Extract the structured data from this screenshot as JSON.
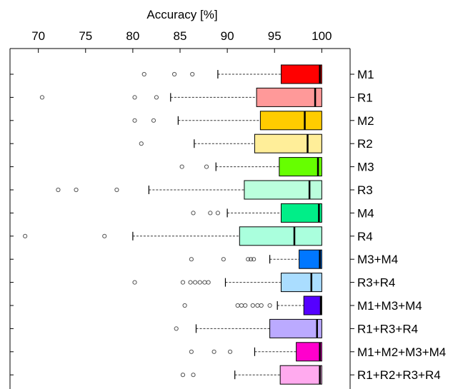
{
  "chart_data": {
    "type": "boxplot",
    "orientation": "horizontal",
    "title": "",
    "xlabel": "Accuracy [%]",
    "xlabel_position": "top",
    "xlim": [
      67,
      103
    ],
    "xticks": [
      70,
      75,
      80,
      85,
      90,
      95,
      100
    ],
    "grid": false,
    "legend": "none",
    "series": [
      {
        "name": "M1",
        "color": "#ff0000",
        "whisker_low": 89.0,
        "q1": 95.7,
        "median": 99.8,
        "q3": 100,
        "whisker_high": 100,
        "outliers": [
          81.2,
          84.4,
          86.3
        ]
      },
      {
        "name": "R1",
        "color": "#ff9999",
        "whisker_low": 84.0,
        "q1": 93.1,
        "median": 99.3,
        "q3": 100,
        "whisker_high": 100,
        "outliers": [
          70.4,
          80.2,
          82.5
        ]
      },
      {
        "name": "M2",
        "color": "#ffcc00",
        "whisker_low": 84.8,
        "q1": 93.5,
        "median": 98.2,
        "q3": 100,
        "whisker_high": 100,
        "outliers": [
          80.2,
          82.2
        ]
      },
      {
        "name": "R2",
        "color": "#ffee99",
        "whisker_low": 86.5,
        "q1": 92.9,
        "median": 98.5,
        "q3": 100,
        "whisker_high": 100,
        "outliers": [
          80.9
        ]
      },
      {
        "name": "M3",
        "color": "#66ff00",
        "whisker_low": 88.8,
        "q1": 95.5,
        "median": 99.6,
        "q3": 100,
        "whisker_high": 100,
        "outliers": [
          85.2,
          87.8
        ]
      },
      {
        "name": "R3",
        "color": "#bbffdd",
        "whisker_low": 81.7,
        "q1": 91.8,
        "median": 98.7,
        "q3": 100,
        "whisker_high": 100,
        "outliers": [
          72.1,
          74.0,
          78.3
        ]
      },
      {
        "name": "M4",
        "color": "#00ee88",
        "whisker_low": 90.0,
        "q1": 95.7,
        "median": 99.7,
        "q3": 100,
        "whisker_high": 100,
        "outliers": [
          86.4,
          88.2,
          89.0
        ]
      },
      {
        "name": "R4",
        "color": "#aaffdd",
        "whisker_low": 80.0,
        "q1": 91.3,
        "median": 97.1,
        "q3": 100,
        "whisker_high": 100,
        "outliers": [
          68.6,
          77.0
        ]
      },
      {
        "name": "M3+M4",
        "color": "#0077ff",
        "whisker_low": 94.5,
        "q1": 97.6,
        "median": 99.8,
        "q3": 100,
        "whisker_high": 100,
        "outliers": [
          86.2,
          89.6,
          92.2,
          92.5,
          92.8
        ]
      },
      {
        "name": "R3+R4",
        "color": "#aaddff",
        "whisker_low": 89.8,
        "q1": 95.7,
        "median": 98.9,
        "q3": 100,
        "whisker_high": 100,
        "outliers": [
          80.2,
          85.3,
          86.1,
          86.6,
          87.1,
          87.6,
          88.0
        ]
      },
      {
        "name": "M1+M3+M4",
        "color": "#5500ff",
        "whisker_low": 95.3,
        "q1": 98.1,
        "median": 99.9,
        "q3": 100,
        "whisker_high": 100,
        "outliers": [
          85.5,
          91.1,
          91.5,
          91.9,
          92.7,
          93.2,
          93.6,
          94.5
        ]
      },
      {
        "name": "R1+R3+R4",
        "color": "#bbaaff",
        "whisker_low": 86.7,
        "q1": 94.5,
        "median": 99.5,
        "q3": 100,
        "whisker_high": 100,
        "outliers": [
          84.6
        ]
      },
      {
        "name": "M1+M2+M3+M4",
        "color": "#ff00cc",
        "whisker_low": 92.9,
        "q1": 97.3,
        "median": 99.8,
        "q3": 100,
        "whisker_high": 100,
        "outliers": [
          86.2,
          88.6,
          90.3
        ]
      },
      {
        "name": "R1+R2+R3+R4",
        "color": "#ffaaee",
        "whisker_low": 90.8,
        "q1": 95.6,
        "median": 99.8,
        "q3": 100,
        "whisker_high": 100,
        "outliers": [
          85.3,
          86.4
        ]
      }
    ]
  }
}
